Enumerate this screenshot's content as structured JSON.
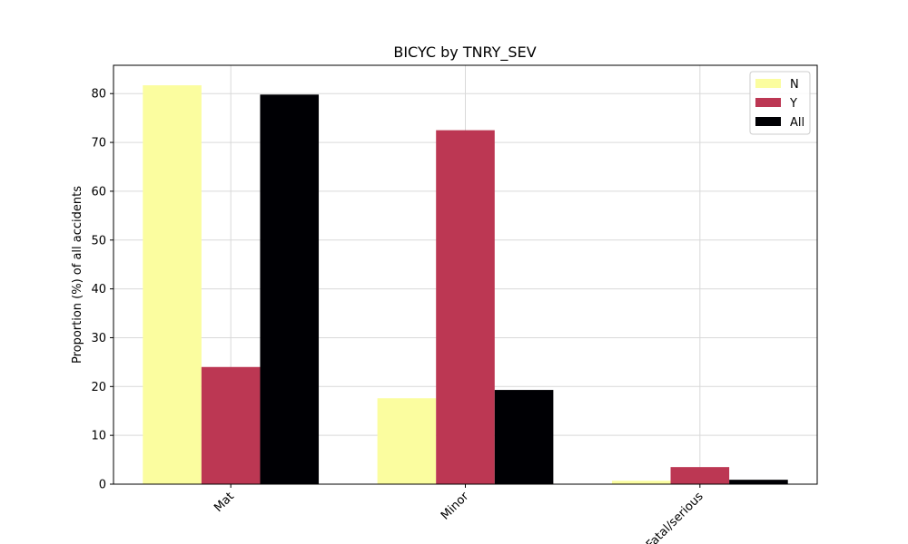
{
  "chart_data": {
    "type": "bar",
    "title": "BICYC by TNRY_SEV",
    "xlabel": "",
    "ylabel": "Proportion (%) of all accidents",
    "categories": [
      "Mat",
      "Minor",
      "Fatal/serious"
    ],
    "series": [
      {
        "name": "N",
        "color": "#fbfd9f",
        "values": [
          81.7,
          17.6,
          0.7
        ]
      },
      {
        "name": "Y",
        "color": "#bc3753",
        "values": [
          24.0,
          72.5,
          3.5
        ]
      },
      {
        "name": "All",
        "color": "#000004",
        "values": [
          79.8,
          19.3,
          0.9
        ]
      }
    ],
    "ylim": [
      0,
      85.8
    ],
    "yticks": [
      "0",
      "10",
      "20",
      "30",
      "40",
      "50",
      "60",
      "70",
      "80"
    ],
    "grid": true,
    "legend": "top-right"
  }
}
